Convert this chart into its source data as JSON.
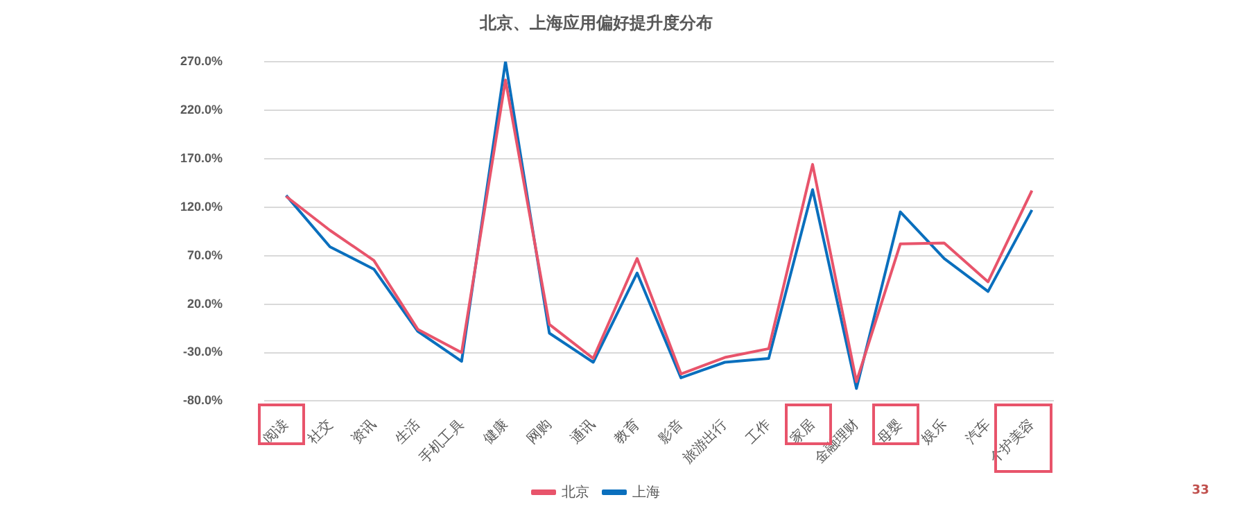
{
  "chart_data": {
    "type": "line",
    "title": "北京、上海应用偏好提升度分布",
    "categories": [
      "阅读",
      "社交",
      "资讯",
      "生活",
      "手机工具",
      "健康",
      "网购",
      "通讯",
      "教育",
      "影音",
      "旅游出行",
      "工作",
      "家居",
      "金融理财",
      "母婴",
      "娱乐",
      "汽车",
      "个护美容"
    ],
    "series": [
      {
        "name": "北京",
        "color": "#e8546b",
        "values": [
          131,
          96,
          65,
          -6,
          -30,
          251,
          -1,
          -36,
          67,
          -52,
          -35,
          -26,
          164,
          -60,
          82,
          83,
          43,
          137
        ]
      },
      {
        "name": "上海",
        "color": "#0a6fbd",
        "values": [
          132,
          79,
          56,
          -8,
          -39,
          270,
          -10,
          -40,
          52,
          -56,
          -40,
          -36,
          138,
          -67,
          115,
          67,
          33,
          117
        ]
      }
    ],
    "ylim": [
      -80,
      270
    ],
    "yticks": [
      {
        "value": -80,
        "label": "-80.0%"
      },
      {
        "value": -30,
        "label": "-30.0%"
      },
      {
        "value": 20,
        "label": "20.0%"
      },
      {
        "value": 70,
        "label": "70.0%"
      },
      {
        "value": 120,
        "label": "120.0%"
      },
      {
        "value": 170,
        "label": "170.0%"
      },
      {
        "value": 220,
        "label": "220.0%"
      },
      {
        "value": 270,
        "label": "270.0%"
      }
    ],
    "grid": "y",
    "legend": "bottom",
    "marker": "none",
    "line_style": "solid",
    "annotations": [
      "33"
    ]
  }
}
